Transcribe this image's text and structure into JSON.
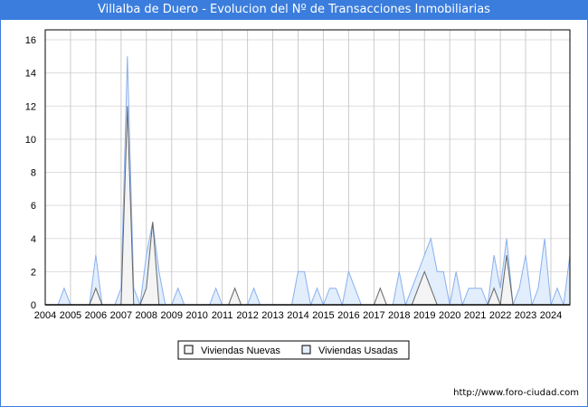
{
  "title": "Villalba de Duero - Evolucion del Nº de Transacciones Inmobiliarias",
  "url": "http://www.foro-ciudad.com",
  "colors": {
    "title_bg": "#3b7ddd",
    "nuevas_fill": "#f4f4f4",
    "nuevas_line": "#666666",
    "usadas_fill": "#e2eefc",
    "usadas_line": "#8ab0ee"
  },
  "chart_data": {
    "type": "area",
    "title": "Villalba de Duero - Evolucion del Nº de Transacciones Inmobiliarias",
    "x_tick_labels": [
      "2004",
      "2005",
      "2006",
      "2007",
      "2008",
      "2009",
      "2010",
      "2011",
      "2012",
      "2013",
      "2014",
      "2015",
      "2016",
      "2017",
      "2018",
      "2019",
      "2020",
      "2021",
      "2022",
      "2023",
      "2024"
    ],
    "y_ticks": [
      0,
      2,
      4,
      6,
      8,
      10,
      12,
      14,
      16
    ],
    "ylim": [
      0,
      16
    ],
    "x_start_year": 2004,
    "periods_per_year": 4,
    "grid": true,
    "legend_position": "bottom-center",
    "series": [
      {
        "name": "Viviendas Nuevas",
        "values": [
          0,
          0,
          0,
          0,
          0,
          0,
          0,
          0,
          1,
          0,
          0,
          0,
          0,
          12,
          0,
          0,
          1,
          5,
          0,
          0,
          0,
          0,
          0,
          0,
          0,
          0,
          0,
          0,
          0,
          0,
          1,
          0,
          0,
          0,
          0,
          0,
          0,
          0,
          0,
          0,
          0,
          0,
          0,
          0,
          0,
          0,
          0,
          0,
          0,
          0,
          0,
          0,
          0,
          1,
          0,
          0,
          0,
          0,
          0,
          1,
          2,
          1,
          0,
          0,
          0,
          0,
          0,
          0,
          0,
          0,
          0,
          1,
          0,
          3,
          0,
          0,
          0,
          0,
          0,
          0,
          0,
          0,
          0,
          0
        ]
      },
      {
        "name": "Viviendas Usadas",
        "values": [
          0,
          0,
          0,
          1,
          0,
          0,
          0,
          0,
          3,
          0,
          0,
          0,
          1,
          15,
          1,
          0,
          3,
          5,
          2,
          0,
          0,
          1,
          0,
          0,
          0,
          0,
          0,
          1,
          0,
          0,
          0,
          0,
          0,
          1,
          0,
          0,
          0,
          0,
          0,
          0,
          2,
          2,
          0,
          1,
          0,
          1,
          1,
          0,
          2,
          1,
          0,
          0,
          0,
          0,
          0,
          0,
          2,
          0,
          1,
          2,
          3,
          4,
          2,
          2,
          0,
          2,
          0,
          1,
          1,
          1,
          0,
          3,
          1,
          4,
          0,
          1,
          3,
          0,
          1,
          4,
          0,
          1,
          0,
          3
        ]
      }
    ]
  }
}
